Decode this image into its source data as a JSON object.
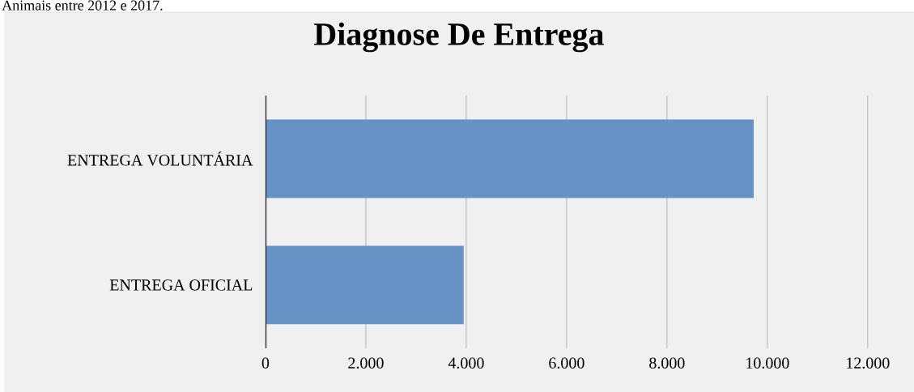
{
  "chart_data": {
    "type": "bar",
    "orientation": "horizontal",
    "title": "Diagnose  De Entrega",
    "annotations": [
      "Animais entre 2012 e 2017."
    ],
    "categories": [
      "ENTREGA VOLUNTÁRIA",
      "ENTREGA OFICIAL"
    ],
    "values": [
      9730,
      3950
    ],
    "color": "#6792c6",
    "xlim": [
      0,
      12000
    ],
    "xticks": [
      0,
      {
        "value": 2000,
        "label": "2.000"
      },
      {
        "value": 4000,
        "label": "4.000"
      },
      {
        "value": 6000,
        "label": "6.000"
      },
      {
        "value": 8000,
        "label": "8.000"
      },
      {
        "value": 10000,
        "label": "10.000"
      },
      {
        "value": 12000,
        "label": "12.000"
      }
    ],
    "grid": "x"
  }
}
